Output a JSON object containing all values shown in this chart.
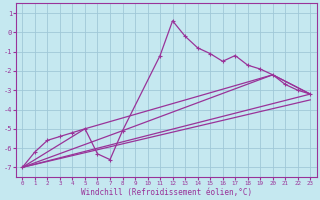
{
  "title": "",
  "xlabel": "Windchill (Refroidissement éolien,°C)",
  "xlim": [
    -0.5,
    23.5
  ],
  "ylim": [
    -7.5,
    1.5
  ],
  "ytick_vals": [
    -7,
    -6,
    -5,
    -4,
    -3,
    -2,
    -1,
    0,
    1
  ],
  "xtick_vals": [
    0,
    1,
    2,
    3,
    4,
    5,
    6,
    7,
    8,
    9,
    10,
    11,
    12,
    13,
    14,
    15,
    16,
    17,
    18,
    19,
    20,
    21,
    22,
    23
  ],
  "bg_color": "#c5e8f0",
  "line_color": "#993399",
  "grid_color": "#a0c8d8",
  "main_line": {
    "x": [
      0,
      1,
      2,
      3,
      4,
      5,
      6,
      7,
      8,
      11,
      12,
      13,
      14,
      15,
      16,
      17,
      18,
      19,
      20,
      21,
      22,
      23
    ],
    "y": [
      -7.0,
      -6.2,
      -5.6,
      -5.4,
      -5.2,
      -5.0,
      -6.3,
      -6.6,
      -5.1,
      -1.2,
      0.6,
      -0.2,
      -0.8,
      -1.1,
      -1.5,
      -1.2,
      -1.7,
      -1.9,
      -2.2,
      -2.7,
      -3.0,
      -3.2
    ]
  },
  "trend_lines": [
    {
      "x": [
        0,
        23
      ],
      "y": [
        -7.0,
        -3.2
      ]
    },
    {
      "x": [
        0,
        23
      ],
      "y": [
        -7.0,
        -3.5
      ]
    },
    {
      "x": [
        0,
        5,
        20,
        23
      ],
      "y": [
        -7.0,
        -5.0,
        -2.2,
        -3.2
      ]
    },
    {
      "x": [
        0,
        8,
        20,
        23
      ],
      "y": [
        -7.0,
        -5.1,
        -2.2,
        -3.2
      ]
    }
  ]
}
